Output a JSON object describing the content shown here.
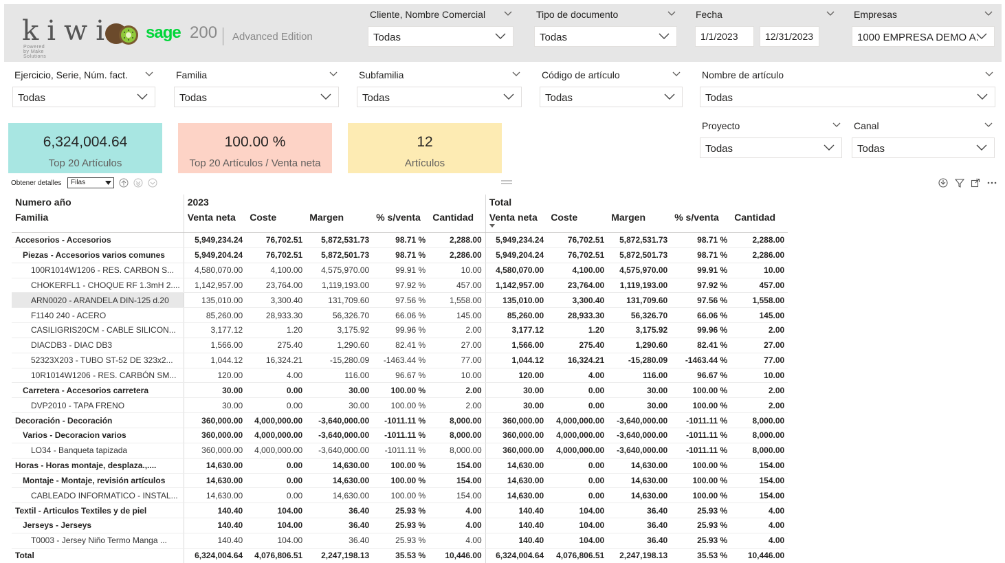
{
  "brand": {
    "kiwi": "kiwi",
    "kiwi_tagline": "Powered by Make Solutions",
    "sage": "sage",
    "sage_version": "200",
    "edition": "Advanced Edition"
  },
  "slicers": {
    "cliente": {
      "title": "Cliente, Nombre Comercial",
      "value": "Todas"
    },
    "tipo_doc": {
      "title": "Tipo de documento",
      "value": "Todas"
    },
    "fecha": {
      "title": "Fecha",
      "from": "1/1/2023",
      "to": "12/31/2023"
    },
    "empresas": {
      "title": "Empresas",
      "value": "1000 EMPRESA DEMO A..."
    },
    "ejercicio": {
      "title": "Ejercicio, Serie, Núm. fact.",
      "value": "Todas"
    },
    "familia": {
      "title": "Familia",
      "value": "Todas"
    },
    "subfamilia": {
      "title": "Subfamilia",
      "value": "Todas"
    },
    "codigo": {
      "title": "Código de artículo",
      "value": "Todas"
    },
    "nombre": {
      "title": "Nombre de artículo",
      "value": "Todas"
    },
    "proyecto": {
      "title": "Proyecto",
      "value": "Todas"
    },
    "canal": {
      "title": "Canal",
      "value": "Todas"
    }
  },
  "cards": [
    {
      "value": "6,324,004.64",
      "label": "Top 20 Artículos",
      "color": "#a8e6e2"
    },
    {
      "value": "100.00 %",
      "label": "Top 20 Artículos / Venta neta",
      "color": "#fdd3c6"
    },
    {
      "value": "12",
      "label": "Artículos",
      "color": "#fdebb3"
    }
  ],
  "toolbar": {
    "label": "Obtener detalles",
    "select_value": "Filas"
  },
  "matrix": {
    "row_header_1": "Numero año",
    "row_header_2": "Familia",
    "col_group_1": "2023",
    "col_group_2": "Total",
    "columns": [
      "Venta neta",
      "Coste",
      "Margen",
      "% s/venta",
      "Cantidad"
    ],
    "rows": [
      {
        "level": 1,
        "name": "Accesorios - Accesorios",
        "v": [
          "5,949,234.24",
          "76,702.51",
          "5,872,531.73",
          "98.71 %",
          "2,288.00"
        ],
        "t": [
          "5,949,234.24",
          "76,702.51",
          "5,872,531.73",
          "98.71 %",
          "2,288.00"
        ]
      },
      {
        "level": 2,
        "name": "Piezas - Accesorios varios comunes",
        "v": [
          "5,949,204.24",
          "76,702.51",
          "5,872,501.73",
          "98.71 %",
          "2,286.00"
        ],
        "t": [
          "5,949,204.24",
          "76,702.51",
          "5,872,501.73",
          "98.71 %",
          "2,286.00"
        ]
      },
      {
        "level": 3,
        "name": "100R1014W1206 - RES. CARBON S...",
        "v": [
          "4,580,070.00",
          "4,100.00",
          "4,575,970.00",
          "99.91 %",
          "10.00"
        ],
        "t": [
          "4,580,070.00",
          "4,100.00",
          "4,575,970.00",
          "99.91 %",
          "10.00"
        ]
      },
      {
        "level": 3,
        "name": "CHOKERFL1 - CHOQUE RF 1.3mH 2....",
        "v": [
          "1,142,957.00",
          "23,764.00",
          "1,119,193.00",
          "97.92 %",
          "457.00"
        ],
        "t": [
          "1,142,957.00",
          "23,764.00",
          "1,119,193.00",
          "97.92 %",
          "457.00"
        ]
      },
      {
        "level": 3,
        "name": "ARN0020 - ARANDELA DIN-125 d.20",
        "v": [
          "135,010.00",
          "3,300.40",
          "131,709.60",
          "97.56 %",
          "1,558.00"
        ],
        "t": [
          "135,010.00",
          "3,300.40",
          "131,709.60",
          "97.56 %",
          "1,558.00"
        ],
        "selected": true
      },
      {
        "level": 3,
        "name": "F1140 240 - ACERO",
        "v": [
          "85,260.00",
          "28,933.30",
          "56,326.70",
          "66.06 %",
          "145.00"
        ],
        "t": [
          "85,260.00",
          "28,933.30",
          "56,326.70",
          "66.06 %",
          "145.00"
        ]
      },
      {
        "level": 3,
        "name": "CASILIGRIS20CM - CABLE SILICON...",
        "v": [
          "3,177.12",
          "1.20",
          "3,175.92",
          "99.96 %",
          "2.00"
        ],
        "t": [
          "3,177.12",
          "1.20",
          "3,175.92",
          "99.96 %",
          "2.00"
        ]
      },
      {
        "level": 3,
        "name": "DIACDB3 - DIAC DB3",
        "v": [
          "1,566.00",
          "275.40",
          "1,290.60",
          "82.41 %",
          "27.00"
        ],
        "t": [
          "1,566.00",
          "275.40",
          "1,290.60",
          "82.41 %",
          "27.00"
        ]
      },
      {
        "level": 3,
        "name": "52323X203 - TUBO ST-52 DE 323x2...",
        "v": [
          "1,044.12",
          "16,324.21",
          "-15,280.09",
          "-1463.44 %",
          "77.00"
        ],
        "t": [
          "1,044.12",
          "16,324.21",
          "-15,280.09",
          "-1463.44 %",
          "77.00"
        ]
      },
      {
        "level": 3,
        "name": "10R1014W1206 - RES. CARBÓN SM...",
        "v": [
          "120.00",
          "4.00",
          "116.00",
          "96.67 %",
          "10.00"
        ],
        "t": [
          "120.00",
          "4.00",
          "116.00",
          "96.67 %",
          "10.00"
        ]
      },
      {
        "level": 2,
        "name": "Carretera - Accesorios carretera",
        "v": [
          "30.00",
          "0.00",
          "30.00",
          "100.00 %",
          "2.00"
        ],
        "t": [
          "30.00",
          "0.00",
          "30.00",
          "100.00 %",
          "2.00"
        ]
      },
      {
        "level": 3,
        "name": "DVP2010 - TAPA FRENO",
        "v": [
          "30.00",
          "0.00",
          "30.00",
          "100.00 %",
          "2.00"
        ],
        "t": [
          "30.00",
          "0.00",
          "30.00",
          "100.00 %",
          "2.00"
        ]
      },
      {
        "level": 1,
        "name": "Decoración - Decoración",
        "v": [
          "360,000.00",
          "4,000,000.00",
          "-3,640,000.00",
          "-1011.11 %",
          "8,000.00"
        ],
        "t": [
          "360,000.00",
          "4,000,000.00",
          "-3,640,000.00",
          "-1011.11 %",
          "8,000.00"
        ]
      },
      {
        "level": 2,
        "name": "Varios - Decoracion varios",
        "v": [
          "360,000.00",
          "4,000,000.00",
          "-3,640,000.00",
          "-1011.11 %",
          "8,000.00"
        ],
        "t": [
          "360,000.00",
          "4,000,000.00",
          "-3,640,000.00",
          "-1011.11 %",
          "8,000.00"
        ]
      },
      {
        "level": 3,
        "name": "LO34 - Banqueta tapizada",
        "v": [
          "360,000.00",
          "4,000,000.00",
          "-3,640,000.00",
          "-1011.11 %",
          "8,000.00"
        ],
        "t": [
          "360,000.00",
          "4,000,000.00",
          "-3,640,000.00",
          "-1011.11 %",
          "8,000.00"
        ]
      },
      {
        "level": 1,
        "name": "Horas - Horas montaje, desplaza.,....",
        "v": [
          "14,630.00",
          "0.00",
          "14,630.00",
          "100.00 %",
          "154.00"
        ],
        "t": [
          "14,630.00",
          "0.00",
          "14,630.00",
          "100.00 %",
          "154.00"
        ]
      },
      {
        "level": 2,
        "name": "Montaje - Montaje, revisión artículos",
        "v": [
          "14,630.00",
          "0.00",
          "14,630.00",
          "100.00 %",
          "154.00"
        ],
        "t": [
          "14,630.00",
          "0.00",
          "14,630.00",
          "100.00 %",
          "154.00"
        ]
      },
      {
        "level": 3,
        "name": "CABLEADO INFORMATICO - INSTAL...",
        "v": [
          "14,630.00",
          "0.00",
          "14,630.00",
          "100.00 %",
          "154.00"
        ],
        "t": [
          "14,630.00",
          "0.00",
          "14,630.00",
          "100.00 %",
          "154.00"
        ]
      },
      {
        "level": 1,
        "name": "Textil - Articulos Textiles y de piel",
        "v": [
          "140.40",
          "104.00",
          "36.40",
          "25.93 %",
          "4.00"
        ],
        "t": [
          "140.40",
          "104.00",
          "36.40",
          "25.93 %",
          "4.00"
        ]
      },
      {
        "level": 2,
        "name": "Jerseys - Jerseys",
        "v": [
          "140.40",
          "104.00",
          "36.40",
          "25.93 %",
          "4.00"
        ],
        "t": [
          "140.40",
          "104.00",
          "36.40",
          "25.93 %",
          "4.00"
        ]
      },
      {
        "level": 3,
        "name": "T0003 - Jersey Niño Termo Manga ...",
        "v": [
          "140.40",
          "104.00",
          "36.40",
          "25.93 %",
          "4.00"
        ],
        "t": [
          "140.40",
          "104.00",
          "36.40",
          "25.93 %",
          "4.00"
        ]
      }
    ],
    "total": {
      "name": "Total",
      "v": [
        "6,324,004.64",
        "4,076,806.51",
        "2,247,198.13",
        "35.53 %",
        "10,446.00"
      ],
      "t": [
        "6,324,004.64",
        "4,076,806.51",
        "2,247,198.13",
        "35.53 %",
        "10,446.00"
      ]
    }
  }
}
